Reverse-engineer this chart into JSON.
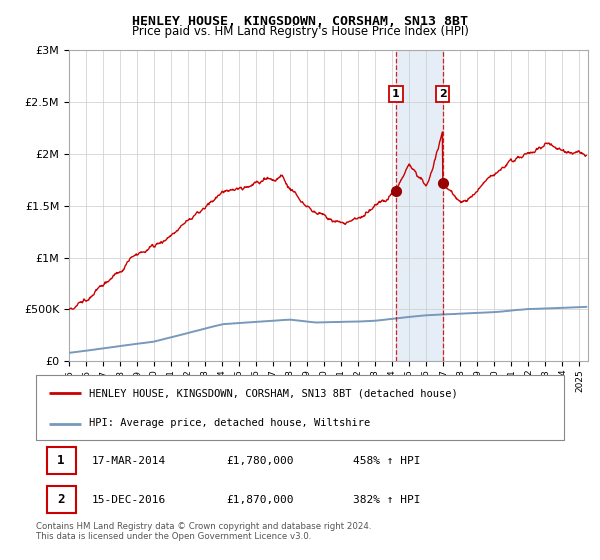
{
  "title": "HENLEY HOUSE, KINGSDOWN, CORSHAM, SN13 8BT",
  "subtitle": "Price paid vs. HM Land Registry's House Price Index (HPI)",
  "legend_line1": "HENLEY HOUSE, KINGSDOWN, CORSHAM, SN13 8BT (detached house)",
  "legend_line2": "HPI: Average price, detached house, Wiltshire",
  "footnote": "Contains HM Land Registry data © Crown copyright and database right 2024.\nThis data is licensed under the Open Government Licence v3.0.",
  "table": [
    {
      "num": "1",
      "date": "17-MAR-2014",
      "price": "£1,780,000",
      "hpi": "458% ↑ HPI"
    },
    {
      "num": "2",
      "date": "15-DEC-2016",
      "price": "£1,870,000",
      "hpi": "382% ↑ HPI"
    }
  ],
  "sale1_year": 2014.21,
  "sale1_price": 1780000,
  "sale2_year": 2016.96,
  "sale2_price": 1870000,
  "red_line_color": "#cc0000",
  "blue_line_color": "#7799bb",
  "dashed_line_color": "#cc0000",
  "shaded_color": "#ccddf0",
  "marker_color": "#990000",
  "ylim": [
    0,
    3000000
  ],
  "xlim_start": 1995,
  "xlim_end": 2025.5,
  "background_color": "#ffffff",
  "grid_color": "#cccccc"
}
